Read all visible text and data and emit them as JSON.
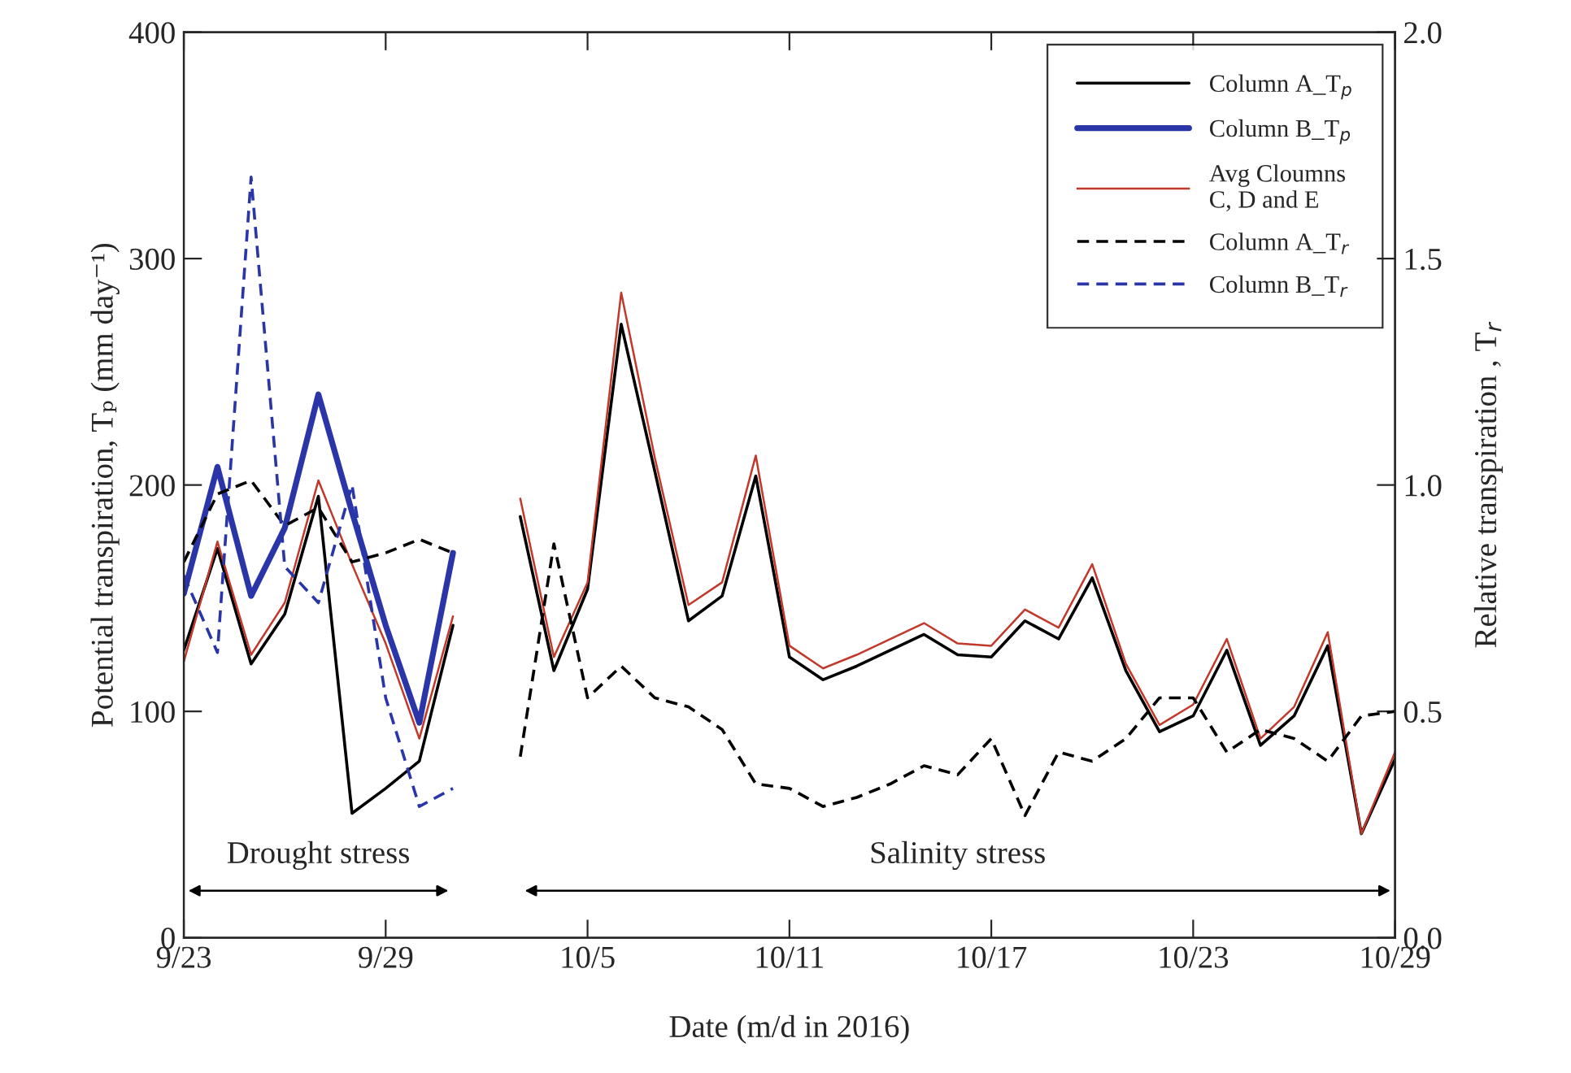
{
  "chart_data": {
    "type": "line",
    "xlabel": "Date (m/d in 2016)",
    "ylabel": "Potential transpiration, Tₚ (mm day⁻¹)",
    "y2label": "Relative transpiration , T$_{r}$",
    "x": [
      "2016-09-23",
      "2016-09-24",
      "2016-09-25",
      "2016-09-26",
      "2016-09-27",
      "2016-09-28",
      "2016-09-29",
      "2016-09-30",
      "2016-10-01",
      "2016-10-02",
      "2016-10-03",
      "2016-10-04",
      "2016-10-05",
      "2016-10-06",
      "2016-10-07",
      "2016-10-08",
      "2016-10-09",
      "2016-10-10",
      "2016-10-11",
      "2016-10-12",
      "2016-10-13",
      "2016-10-14",
      "2016-10-15",
      "2016-10-16",
      "2016-10-17",
      "2016-10-18",
      "2016-10-19",
      "2016-10-20",
      "2016-10-21",
      "2016-10-22",
      "2016-10-23",
      "2016-10-24",
      "2016-10-25",
      "2016-10-26",
      "2016-10-27",
      "2016-10-28",
      "2016-10-29"
    ],
    "series": [
      {
        "name": "Column A_T$_{p}$",
        "color": "#000000",
        "line_style": "solid",
        "values": [
          127,
          172,
          121,
          143,
          195,
          55,
          66,
          78,
          138,
          null,
          186,
          118,
          154,
          271,
          206,
          140,
          151,
          204,
          124,
          114,
          120,
          127,
          134,
          125,
          124,
          140,
          132,
          159,
          118,
          91,
          98,
          127,
          85,
          98,
          129,
          46,
          79
        ]
      },
      {
        "name": "Column B_T$_{p}$",
        "color": "#2a35a8",
        "line_style": "solid",
        "x": [
          "2016-09-23",
          "2016-09-24",
          "2016-09-25",
          "2016-09-26",
          "2016-09-27",
          "2016-09-28",
          "2016-09-29",
          "2016-09-30",
          "2016-10-01"
        ],
        "values": [
          152,
          208,
          151,
          181,
          240,
          188,
          138,
          95,
          170
        ]
      },
      {
        "name": "Avg Cloumns\nC, D and E",
        "color": "#c0392b",
        "line_style": "solid",
        "values": [
          122,
          175,
          125,
          148,
          202,
          165,
          130,
          88,
          142,
          null,
          194,
          124,
          157,
          285,
          212,
          147,
          157,
          213,
          129,
          119,
          125,
          132,
          139,
          130,
          129,
          145,
          137,
          165,
          121,
          94,
          103,
          132,
          88,
          102,
          135,
          46,
          82
        ]
      },
      {
        "name": "Column A_T$_{r}$",
        "color": "#000000",
        "line_style": "dashed",
        "axis": "y2",
        "values": [
          0.83,
          0.98,
          1.01,
          0.91,
          0.95,
          0.83,
          0.85,
          0.88,
          0.85,
          null,
          0.4,
          0.87,
          0.53,
          0.6,
          0.53,
          0.51,
          0.46,
          0.34,
          0.33,
          0.29,
          0.31,
          0.34,
          0.38,
          0.36,
          0.44,
          0.27,
          0.41,
          0.39,
          0.44,
          0.53,
          0.53,
          0.41,
          0.46,
          0.44,
          0.39,
          0.49,
          0.5
        ]
      },
      {
        "name": "Column B_T$_{r}$",
        "color": "#2a35a8",
        "line_style": "dashed",
        "axis": "y2",
        "x": [
          "2016-09-23",
          "2016-09-24",
          "2016-09-25",
          "2016-09-26",
          "2016-09-27",
          "2016-09-28",
          "2016-09-29",
          "2016-09-30",
          "2016-10-01"
        ],
        "values": [
          0.8,
          0.63,
          1.68,
          0.82,
          0.74,
          1.0,
          0.53,
          0.29,
          0.33
        ]
      }
    ],
    "xlim": [
      "2016-09-23",
      "2016-10-29"
    ],
    "xticks": [
      {
        "value": "2016-09-23",
        "label": "9/23"
      },
      {
        "value": "2016-09-29",
        "label": "9/29"
      },
      {
        "value": "2016-10-05",
        "label": "10/5"
      },
      {
        "value": "2016-10-11",
        "label": "10/11"
      },
      {
        "value": "2016-10-17",
        "label": "10/17"
      },
      {
        "value": "2016-10-23",
        "label": "10/23"
      },
      {
        "value": "2016-10-29",
        "label": "10/29"
      }
    ],
    "ylim": [
      0,
      400
    ],
    "yticks": [
      0,
      100,
      200,
      300,
      400
    ],
    "y2lim": [
      0,
      2.0
    ],
    "y2ticks": [
      {
        "value": 0,
        "label": "0.0"
      },
      {
        "value": 0.5,
        "label": "0.5"
      },
      {
        "value": 1.0,
        "label": "1.0"
      },
      {
        "value": 1.5,
        "label": "1.5"
      },
      {
        "value": 2.0,
        "label": "2.0"
      }
    ],
    "annotations": [
      "Drought stress",
      "Salinity stress"
    ],
    "legend": "top right",
    "grid": false
  }
}
